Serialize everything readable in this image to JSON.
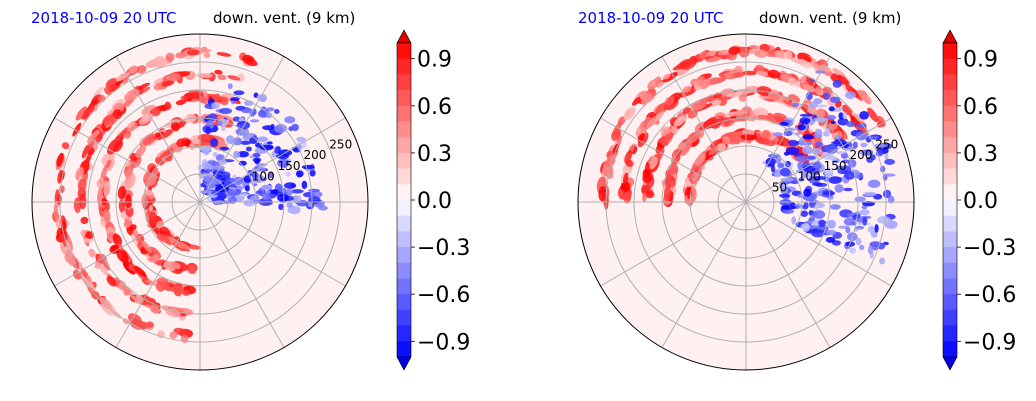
{
  "colors": {
    "title_date": "#0000ff",
    "title_desc": "#000000",
    "positive": "#ff0000",
    "negative": "#0000ff",
    "grid": "#b0b0b0"
  },
  "panels": [
    {
      "title_left": "2018-10-09 20 UTC",
      "title_right": "down. vent. (9 km)",
      "r_labels": [
        "100",
        "150",
        "200",
        "250"
      ],
      "colorbar_ticks": [
        "0.9",
        "0.6",
        "0.3",
        "0.0",
        "−0.3",
        "−0.6",
        "−0.9"
      ]
    },
    {
      "title_left": "2018-10-09 20 UTC",
      "title_right": "down. vent. (9 km)",
      "r_labels": [
        "50",
        "100",
        "150",
        "200",
        "250"
      ],
      "colorbar_ticks": [
        "0.9",
        "0.6",
        "0.3",
        "0.0",
        "−0.3",
        "−0.6",
        "−0.9"
      ]
    }
  ],
  "chart_data": [
    {
      "type": "heatmap",
      "projection": "polar",
      "title": "2018-10-09 20 UTC  down. vent. (9 km)",
      "r_ticks": [
        50,
        100,
        150,
        200,
        250
      ],
      "r_max": 300,
      "colorbar": {
        "min": -1.0,
        "max": 1.0,
        "ticks": [
          0.9,
          0.6,
          0.3,
          0.0,
          -0.3,
          -0.6,
          -0.9
        ],
        "extend": "both",
        "cmap": "bwr"
      },
      "grid": true,
      "features": [
        {
          "kind": "spiral-band",
          "sign": "positive",
          "azimuth_deg_start": 95,
          "azimuth_deg_end": 290,
          "r_start": 80,
          "r_end": 280
        },
        {
          "kind": "patch",
          "sign": "negative",
          "azimuth_deg": 40,
          "r": 120
        }
      ]
    },
    {
      "type": "heatmap",
      "projection": "polar",
      "title": "2018-10-09 20 UTC  down. vent. (9 km)",
      "r_ticks": [
        50,
        100,
        150,
        200,
        250
      ],
      "r_max": 300,
      "colorbar": {
        "min": -1.0,
        "max": 1.0,
        "ticks": [
          0.9,
          0.6,
          0.3,
          0.0,
          -0.3,
          -0.6,
          -0.9
        ],
        "extend": "both",
        "cmap": "bwr"
      },
      "grid": true,
      "features": [
        {
          "kind": "spiral-band",
          "sign": "positive",
          "azimuth_deg_start": 180,
          "azimuth_deg_end": 330,
          "r_start": 100,
          "r_end": 290
        },
        {
          "kind": "patch",
          "sign": "negative",
          "azimuth_deg": 20,
          "r": 170
        }
      ]
    }
  ]
}
